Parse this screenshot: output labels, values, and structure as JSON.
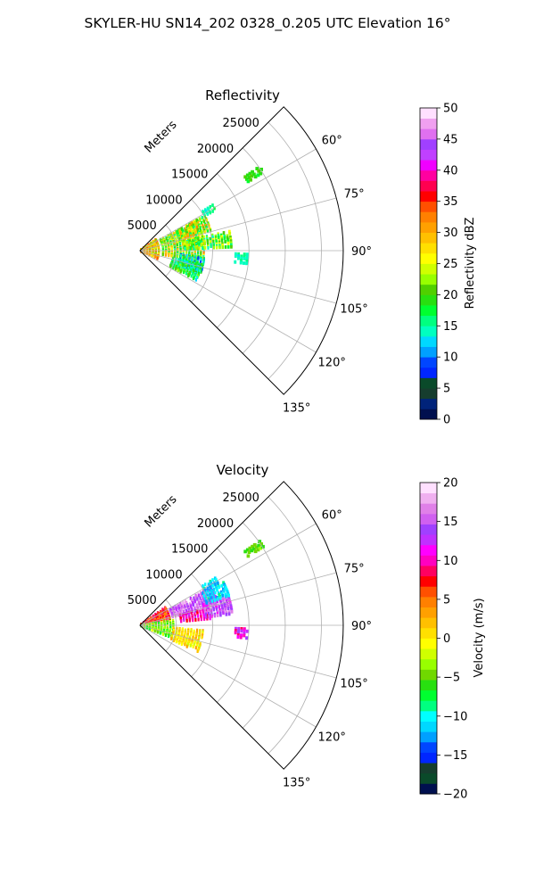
{
  "figure": {
    "suptitle": "SKYLER-HU  SN14_202  0328_0.205 UTC Elevation 16°"
  },
  "chart_data": [
    {
      "type": "heatmap",
      "subtype": "polar-sector",
      "title": "Reflectivity",
      "range_label": "Meters",
      "range_ticks": [
        5000,
        10000,
        15000,
        20000,
        25000
      ],
      "range_tick_labels": [
        "5000",
        "10000",
        "15000",
        "20000",
        "25000"
      ],
      "range_max": 28000,
      "azimuth_range": [
        45,
        135
      ],
      "azimuth_ticks": [
        60,
        75,
        90,
        105,
        120,
        135
      ],
      "azimuth_tick_labels": [
        "60°",
        "75°",
        "90°",
        "105°",
        "120°",
        "135°"
      ],
      "grid": true,
      "colorbar": {
        "label": "Reflectivity dBZ",
        "vmin": 0,
        "vmax": 50,
        "ticks": [
          0,
          5,
          10,
          15,
          20,
          25,
          30,
          35,
          40,
          45,
          50
        ],
        "tick_labels": [
          "0",
          "5",
          "10",
          "15",
          "20",
          "25",
          "30",
          "35",
          "40",
          "45",
          "50"
        ]
      },
      "echo_regions": [
        {
          "az": [
            55,
            115
          ],
          "r": [
            0,
            3000
          ],
          "value": 28,
          "spread": 8
        },
        {
          "az": [
            62,
            100
          ],
          "r": [
            3000,
            9000
          ],
          "value": 23,
          "spread": 9
        },
        {
          "az": [
            62,
            75
          ],
          "r": [
            5500,
            10500
          ],
          "value": 24,
          "spread": 8
        },
        {
          "az": [
            78,
            88
          ],
          "r": [
            6000,
            13000
          ],
          "value": 20,
          "spread": 6
        },
        {
          "az": [
            92,
            98
          ],
          "r": [
            13000,
            15000
          ],
          "value": 15,
          "spread": 2
        },
        {
          "az": [
            96,
            110
          ],
          "r": [
            5500,
            9000
          ],
          "value": 14,
          "spread": 6
        },
        {
          "az": [
            103,
            118
          ],
          "r": [
            4500,
            8800
          ],
          "value": 17,
          "spread": 5
        },
        {
          "az": [
            58,
            62
          ],
          "r": [
            10000,
            12000
          ],
          "value": 15,
          "spread": 2
        },
        {
          "az": [
            55,
            58
          ],
          "r": [
            17500,
            20500
          ],
          "value": 19,
          "spread": 2
        }
      ]
    },
    {
      "type": "heatmap",
      "subtype": "polar-sector",
      "title": "Velocity",
      "range_label": "Meters",
      "range_ticks": [
        5000,
        10000,
        15000,
        20000,
        25000
      ],
      "range_tick_labels": [
        "5000",
        "10000",
        "15000",
        "20000",
        "25000"
      ],
      "range_max": 28000,
      "azimuth_range": [
        45,
        135
      ],
      "azimuth_ticks": [
        60,
        75,
        90,
        105,
        120,
        135
      ],
      "azimuth_tick_labels": [
        "60°",
        "75°",
        "90°",
        "105°",
        "120°",
        "135°"
      ],
      "grid": true,
      "colorbar": {
        "label": "Velocity (m/s)",
        "vmin": -20,
        "vmax": 20,
        "ticks": [
          -20,
          -15,
          -10,
          -5,
          0,
          5,
          10,
          15,
          20
        ],
        "tick_labels": [
          "−20",
          "−15",
          "−10",
          "−5",
          "0",
          "5",
          "10",
          "15",
          "20"
        ]
      },
      "echo_regions": [
        {
          "az": [
            55,
            82
          ],
          "r": [
            0,
            4500
          ],
          "value": 7,
          "spread": 4
        },
        {
          "az": [
            82,
            112
          ],
          "r": [
            0,
            5000
          ],
          "value": -4,
          "spread": 4
        },
        {
          "az": [
            95,
            115
          ],
          "r": [
            4500,
            9000
          ],
          "value": 1,
          "spread": 3
        },
        {
          "az": [
            62,
            76
          ],
          "r": [
            4500,
            11500
          ],
          "value": 15,
          "spread": 3
        },
        {
          "az": [
            76,
            85
          ],
          "r": [
            5500,
            10000
          ],
          "value": 10,
          "spread": 3
        },
        {
          "az": [
            72,
            84
          ],
          "r": [
            9000,
            13000
          ],
          "value": 14,
          "spread": 3
        },
        {
          "az": [
            63,
            72
          ],
          "r": [
            9500,
            13000
          ],
          "value": -11,
          "spread": 2
        },
        {
          "az": [
            58,
            62
          ],
          "r": [
            10000,
            12500
          ],
          "value": -11,
          "spread": 2
        },
        {
          "az": [
            92,
            98
          ],
          "r": [
            13000,
            15000
          ],
          "value": 11,
          "spread": 3
        },
        {
          "az": [
            55,
            58
          ],
          "r": [
            17500,
            20500
          ],
          "value": -5,
          "spread": 2
        }
      ]
    }
  ]
}
